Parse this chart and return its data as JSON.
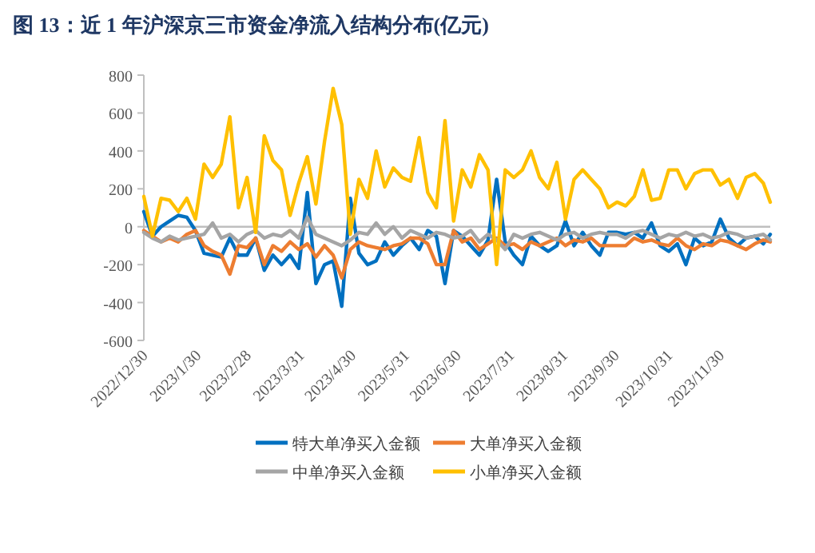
{
  "chart_data": {
    "type": "line",
    "title": "图 13：近 1 年沪深京三市资金净流入结构分布(亿元)",
    "x": [
      "2022-12-30",
      "2023-01-04",
      "2023-01-09",
      "2023-01-14",
      "2023-01-19",
      "2023-01-24",
      "2023-01-29",
      "2023-02-03",
      "2023-02-08",
      "2023-02-13",
      "2023-02-18",
      "2023-02-23",
      "2023-02-28",
      "2023-03-05",
      "2023-03-10",
      "2023-03-15",
      "2023-03-20",
      "2023-03-25",
      "2023-03-30",
      "2023-04-04",
      "2023-04-09",
      "2023-04-14",
      "2023-04-19",
      "2023-04-24",
      "2023-04-29",
      "2023-05-04",
      "2023-05-09",
      "2023-05-14",
      "2023-05-19",
      "2023-05-24",
      "2023-05-29",
      "2023-06-03",
      "2023-06-08",
      "2023-06-13",
      "2023-06-18",
      "2023-06-23",
      "2023-06-28",
      "2023-07-03",
      "2023-07-08",
      "2023-07-13",
      "2023-07-18",
      "2023-07-23",
      "2023-07-28",
      "2023-08-02",
      "2023-08-07",
      "2023-08-12",
      "2023-08-17",
      "2023-08-22",
      "2023-08-27",
      "2023-09-01",
      "2023-09-06",
      "2023-09-11",
      "2023-09-16",
      "2023-09-21",
      "2023-09-26",
      "2023-10-01",
      "2023-10-06",
      "2023-10-11",
      "2023-10-16",
      "2023-10-21",
      "2023-10-26",
      "2023-10-31",
      "2023-11-05",
      "2023-11-10",
      "2023-11-15",
      "2023-11-20",
      "2023-11-25",
      "2023-11-30",
      "2023-12-05",
      "2023-12-10",
      "2023-12-15",
      "2023-12-20",
      "2023-12-25",
      "2023-12-29"
    ],
    "series": [
      {
        "name": "特大单净买入金额",
        "color": "#0070c0",
        "values": [
          80,
          -50,
          0,
          30,
          60,
          50,
          -20,
          -140,
          -150,
          -160,
          -60,
          -150,
          -150,
          -60,
          -230,
          -150,
          -200,
          -150,
          -220,
          180,
          -300,
          -200,
          -180,
          -420,
          150,
          -140,
          -200,
          -180,
          -80,
          -150,
          -100,
          -60,
          -120,
          -20,
          -50,
          -300,
          -20,
          -50,
          -100,
          -150,
          -70,
          250,
          -80,
          -150,
          -200,
          -50,
          -100,
          -130,
          -100,
          30,
          -100,
          -30,
          -100,
          -150,
          -30,
          -30,
          -40,
          -30,
          -60,
          20,
          -100,
          -130,
          -90,
          -200,
          -60,
          -100,
          -80,
          40,
          -60,
          -100,
          -60,
          -50,
          -90,
          -40
        ]
      },
      {
        "name": "大单净买入金额",
        "color": "#ed7d31",
        "values": [
          -20,
          -50,
          -80,
          -60,
          -80,
          -40,
          -20,
          -100,
          -130,
          -150,
          -250,
          -100,
          -110,
          -60,
          -200,
          -100,
          -130,
          -80,
          -120,
          -90,
          -160,
          -100,
          -150,
          -270,
          -120,
          -80,
          -100,
          -110,
          -120,
          -100,
          -90,
          -60,
          -60,
          -90,
          -200,
          -200,
          -20,
          -80,
          -60,
          -120,
          -90,
          -60,
          -100,
          -90,
          -120,
          -80,
          -100,
          -80,
          -60,
          -100,
          -70,
          -80,
          -60,
          -100,
          -100,
          -100,
          -100,
          -60,
          -80,
          -70,
          -90,
          -100,
          -60,
          -100,
          -120,
          -90,
          -100,
          -70,
          -80,
          -100,
          -120,
          -90,
          -70,
          -80
        ]
      },
      {
        "name": "中单净买入金额",
        "color": "#a5a5a5",
        "values": [
          -30,
          -60,
          -80,
          -50,
          -70,
          -60,
          -50,
          -40,
          20,
          -60,
          -40,
          -80,
          -40,
          -20,
          -60,
          -40,
          -50,
          -20,
          -60,
          50,
          -40,
          -60,
          -80,
          -100,
          -70,
          -30,
          -40,
          20,
          -40,
          0,
          -60,
          -20,
          -40,
          -60,
          -30,
          -40,
          -60,
          -50,
          -20,
          -80,
          -40,
          -70,
          -120,
          -40,
          -60,
          -40,
          -30,
          -50,
          -70,
          -40,
          -30,
          -60,
          -40,
          -30,
          -40,
          -40,
          -60,
          -30,
          -20,
          -40,
          -60,
          -40,
          -50,
          -30,
          -50,
          -40,
          -60,
          -50,
          -30,
          -40,
          -60,
          -50,
          -40,
          -70
        ]
      },
      {
        "name": "小单净买入金额",
        "color": "#ffc000",
        "values": [
          160,
          -50,
          150,
          140,
          80,
          150,
          40,
          330,
          260,
          330,
          580,
          100,
          260,
          -30,
          480,
          350,
          300,
          60,
          230,
          370,
          120,
          450,
          730,
          540,
          -40,
          250,
          150,
          400,
          210,
          310,
          260,
          240,
          470,
          180,
          100,
          560,
          30,
          300,
          210,
          380,
          300,
          -200,
          300,
          260,
          300,
          400,
          260,
          200,
          340,
          40,
          250,
          300,
          250,
          200,
          100,
          130,
          110,
          160,
          300,
          140,
          150,
          300,
          300,
          200,
          280,
          300,
          300,
          220,
          250,
          150,
          260,
          280,
          230,
          130
        ]
      }
    ],
    "xlim": [
      "2022-12-30",
      "2023-12-29"
    ],
    "xticks": [
      {
        "value": "2022-12-30",
        "label": "2022/12/30"
      },
      {
        "value": "2023-01-30",
        "label": "2023/1/30"
      },
      {
        "value": "2023-02-28",
        "label": "2023/2/28"
      },
      {
        "value": "2023-03-31",
        "label": "2023/3/31"
      },
      {
        "value": "2023-04-30",
        "label": "2023/4/30"
      },
      {
        "value": "2023-05-31",
        "label": "2023/5/31"
      },
      {
        "value": "2023-06-30",
        "label": "2023/6/30"
      },
      {
        "value": "2023-07-31",
        "label": "2023/7/31"
      },
      {
        "value": "2023-08-31",
        "label": "2023/8/31"
      },
      {
        "value": "2023-09-30",
        "label": "2023/9/30"
      },
      {
        "value": "2023-10-31",
        "label": "2023/10/31"
      },
      {
        "value": "2023-11-30",
        "label": "2023/11/30"
      }
    ],
    "ylim": [
      -600,
      800
    ],
    "yticks": [
      -600,
      -400,
      -200,
      0,
      200,
      400,
      600,
      800
    ],
    "legend": "bottom",
    "marker": "none",
    "line_style": "solid"
  }
}
